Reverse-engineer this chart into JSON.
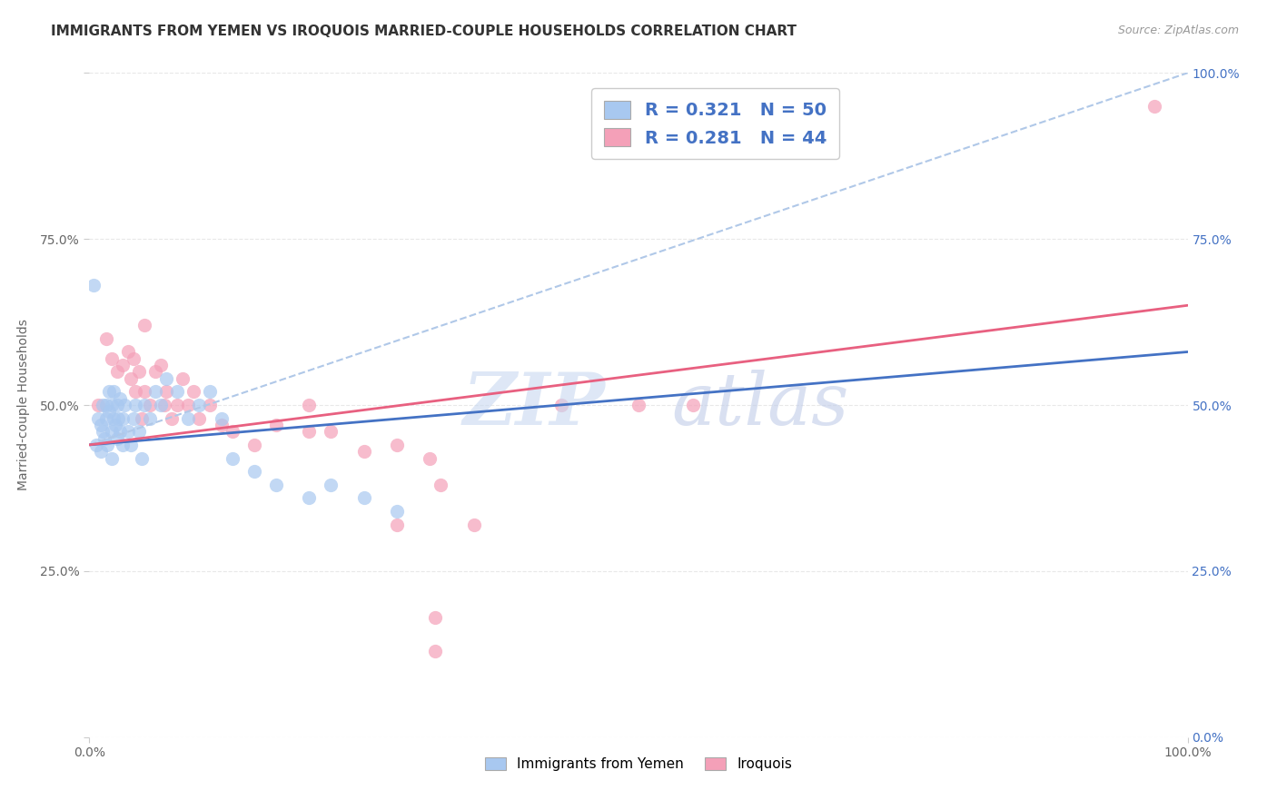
{
  "title": "IMMIGRANTS FROM YEMEN VS IROQUOIS MARRIED-COUPLE HOUSEHOLDS CORRELATION CHART",
  "source": "Source: ZipAtlas.com",
  "ylabel": "Married-couple Households",
  "legend_labels": [
    "Immigrants from Yemen",
    "Iroquois"
  ],
  "legend_r_n": [
    {
      "R": "0.321",
      "N": "50"
    },
    {
      "R": "0.281",
      "N": "44"
    }
  ],
  "blue_color": "#A8C8F0",
  "pink_color": "#F4A0B8",
  "blue_line_color": "#4472C4",
  "pink_line_color": "#E86080",
  "blue_dashed_color": "#B0C8E8",
  "text_blue": "#4472C4",
  "watermark_zip": "#C8D8F0",
  "watermark_atlas": "#C8D0E8",
  "background_color": "#FFFFFF",
  "grid_color": "#E8E8E8",
  "yemen_x": [
    0.004,
    0.006,
    0.008,
    0.01,
    0.01,
    0.012,
    0.012,
    0.014,
    0.015,
    0.015,
    0.016,
    0.018,
    0.018,
    0.02,
    0.02,
    0.02,
    0.022,
    0.022,
    0.024,
    0.025,
    0.025,
    0.026,
    0.028,
    0.028,
    0.03,
    0.03,
    0.032,
    0.035,
    0.038,
    0.04,
    0.042,
    0.045,
    0.048,
    0.05,
    0.055,
    0.06,
    0.065,
    0.07,
    0.08,
    0.09,
    0.1,
    0.11,
    0.12,
    0.13,
    0.15,
    0.17,
    0.2,
    0.22,
    0.25,
    0.28
  ],
  "yemen_y": [
    0.68,
    0.44,
    0.48,
    0.47,
    0.43,
    0.46,
    0.5,
    0.45,
    0.5,
    0.48,
    0.44,
    0.49,
    0.52,
    0.46,
    0.5,
    0.42,
    0.48,
    0.52,
    0.47,
    0.45,
    0.5,
    0.48,
    0.46,
    0.51,
    0.44,
    0.48,
    0.5,
    0.46,
    0.44,
    0.48,
    0.5,
    0.46,
    0.42,
    0.5,
    0.48,
    0.52,
    0.5,
    0.54,
    0.52,
    0.48,
    0.5,
    0.52,
    0.48,
    0.42,
    0.4,
    0.38,
    0.36,
    0.38,
    0.36,
    0.34
  ],
  "iroquois_x": [
    0.008,
    0.015,
    0.02,
    0.025,
    0.03,
    0.035,
    0.038,
    0.04,
    0.042,
    0.045,
    0.048,
    0.05,
    0.055,
    0.06,
    0.065,
    0.068,
    0.07,
    0.075,
    0.08,
    0.085,
    0.09,
    0.095,
    0.1,
    0.11,
    0.12,
    0.13,
    0.15,
    0.17,
    0.2,
    0.22,
    0.25,
    0.28,
    0.31,
    0.32,
    0.05,
    0.2,
    0.28,
    0.35,
    0.43,
    0.5,
    0.55,
    0.97,
    0.315,
    0.315
  ],
  "iroquois_y": [
    0.5,
    0.6,
    0.57,
    0.55,
    0.56,
    0.58,
    0.54,
    0.57,
    0.52,
    0.55,
    0.48,
    0.52,
    0.5,
    0.55,
    0.56,
    0.5,
    0.52,
    0.48,
    0.5,
    0.54,
    0.5,
    0.52,
    0.48,
    0.5,
    0.47,
    0.46,
    0.44,
    0.47,
    0.46,
    0.46,
    0.43,
    0.44,
    0.42,
    0.38,
    0.62,
    0.5,
    0.32,
    0.32,
    0.5,
    0.5,
    0.5,
    0.95,
    0.13,
    0.18
  ],
  "blue_trend": [
    0.44,
    0.58
  ],
  "pink_trend": [
    0.44,
    0.65
  ],
  "dashed_trend": [
    0.44,
    1.0
  ],
  "xlim": [
    0.0,
    1.0
  ],
  "ylim": [
    0.0,
    1.0
  ]
}
